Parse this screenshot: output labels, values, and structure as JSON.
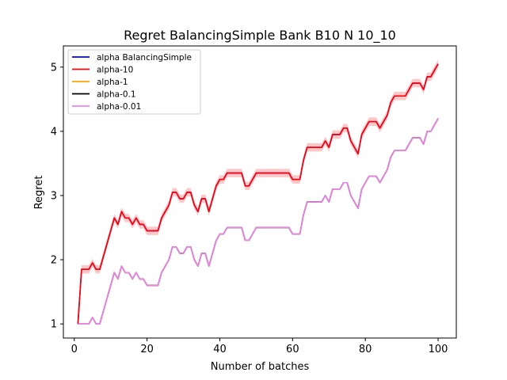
{
  "chart_data": {
    "type": "line",
    "title": "Regret BalancingSimple Bank B10 N 10_10",
    "xlabel": "Number of batches",
    "ylabel": "Regret",
    "xlim": [
      -3,
      105
    ],
    "ylim": [
      0.78,
      5.33
    ],
    "xticks": [
      0,
      20,
      40,
      60,
      80,
      100
    ],
    "yticks": [
      1,
      2,
      3,
      4,
      5
    ],
    "grid": false,
    "legend_position": "top-left",
    "x": [
      1,
      2,
      3,
      4,
      5,
      6,
      7,
      8,
      9,
      10,
      11,
      12,
      13,
      14,
      15,
      16,
      17,
      18,
      19,
      20,
      21,
      22,
      23,
      24,
      25,
      26,
      27,
      28,
      29,
      30,
      31,
      32,
      33,
      34,
      35,
      36,
      37,
      38,
      39,
      40,
      41,
      42,
      43,
      44,
      45,
      46,
      47,
      48,
      49,
      50,
      51,
      52,
      53,
      54,
      55,
      56,
      57,
      58,
      59,
      60,
      61,
      62,
      63,
      64,
      65,
      66,
      67,
      68,
      69,
      70,
      71,
      72,
      73,
      74,
      75,
      76,
      77,
      78,
      79,
      80,
      81,
      82,
      83,
      84,
      85,
      86,
      87,
      88,
      89,
      90,
      91,
      92,
      93,
      94,
      95,
      96,
      97,
      98,
      99,
      100
    ],
    "series": [
      {
        "name": "alpha BalancingSimple",
        "color": "#0000ff",
        "values": [
          1.0,
          1.85,
          1.85,
          1.85,
          1.95,
          1.85,
          1.85,
          2.05,
          2.25,
          2.45,
          2.65,
          2.55,
          2.75,
          2.65,
          2.65,
          2.55,
          2.65,
          2.55,
          2.55,
          2.45,
          2.45,
          2.45,
          2.45,
          2.65,
          2.75,
          2.85,
          3.05,
          3.05,
          2.95,
          2.95,
          3.05,
          3.05,
          2.85,
          2.75,
          2.95,
          2.95,
          2.75,
          2.95,
          3.15,
          3.25,
          3.25,
          3.35,
          3.35,
          3.35,
          3.35,
          3.35,
          3.15,
          3.15,
          3.25,
          3.35,
          3.35,
          3.35,
          3.35,
          3.35,
          3.35,
          3.35,
          3.35,
          3.35,
          3.35,
          3.25,
          3.25,
          3.25,
          3.55,
          3.75,
          3.75,
          3.75,
          3.75,
          3.75,
          3.85,
          3.75,
          3.95,
          3.95,
          3.95,
          4.05,
          4.05,
          3.85,
          3.75,
          3.65,
          3.95,
          4.05,
          4.15,
          4.15,
          4.15,
          4.05,
          4.15,
          4.25,
          4.45,
          4.55,
          4.55,
          4.55,
          4.55,
          4.65,
          4.75,
          4.75,
          4.75,
          4.65,
          4.85,
          4.85,
          4.95,
          5.05
        ],
        "band": false
      },
      {
        "name": "alpha-10",
        "color": "#ff0000",
        "values": [
          1.0,
          1.85,
          1.85,
          1.85,
          1.95,
          1.85,
          1.85,
          2.05,
          2.25,
          2.45,
          2.65,
          2.55,
          2.75,
          2.65,
          2.65,
          2.55,
          2.65,
          2.55,
          2.55,
          2.45,
          2.45,
          2.45,
          2.45,
          2.65,
          2.75,
          2.85,
          3.05,
          3.05,
          2.95,
          2.95,
          3.05,
          3.05,
          2.85,
          2.75,
          2.95,
          2.95,
          2.75,
          2.95,
          3.15,
          3.25,
          3.25,
          3.35,
          3.35,
          3.35,
          3.35,
          3.35,
          3.15,
          3.15,
          3.25,
          3.35,
          3.35,
          3.35,
          3.35,
          3.35,
          3.35,
          3.35,
          3.35,
          3.35,
          3.35,
          3.25,
          3.25,
          3.25,
          3.55,
          3.75,
          3.75,
          3.75,
          3.75,
          3.75,
          3.85,
          3.75,
          3.95,
          3.95,
          3.95,
          4.05,
          4.05,
          3.85,
          3.75,
          3.65,
          3.95,
          4.05,
          4.15,
          4.15,
          4.15,
          4.05,
          4.15,
          4.25,
          4.45,
          4.55,
          4.55,
          4.55,
          4.55,
          4.65,
          4.75,
          4.75,
          4.75,
          4.65,
          4.85,
          4.85,
          4.95,
          5.05
        ],
        "band": true,
        "band_halfwidth": 0.065
      },
      {
        "name": "alpha-1",
        "color": "#ffa500",
        "values": [
          1.0,
          1.0,
          1.0,
          1.0,
          1.1,
          1.0,
          1.0,
          1.2,
          1.4,
          1.6,
          1.8,
          1.7,
          1.9,
          1.8,
          1.8,
          1.7,
          1.8,
          1.7,
          1.7,
          1.6,
          1.6,
          1.6,
          1.6,
          1.8,
          1.9,
          2.0,
          2.2,
          2.2,
          2.1,
          2.1,
          2.2,
          2.2,
          2.0,
          1.9,
          2.1,
          2.1,
          1.9,
          2.1,
          2.3,
          2.4,
          2.4,
          2.5,
          2.5,
          2.5,
          2.5,
          2.5,
          2.3,
          2.3,
          2.4,
          2.5,
          2.5,
          2.5,
          2.5,
          2.5,
          2.5,
          2.5,
          2.5,
          2.5,
          2.5,
          2.4,
          2.4,
          2.4,
          2.7,
          2.9,
          2.9,
          2.9,
          2.9,
          2.9,
          3.0,
          2.9,
          3.1,
          3.1,
          3.1,
          3.2,
          3.2,
          3.0,
          2.9,
          2.8,
          3.1,
          3.2,
          3.3,
          3.3,
          3.3,
          3.2,
          3.3,
          3.4,
          3.6,
          3.7,
          3.7,
          3.7,
          3.7,
          3.8,
          3.9,
          3.9,
          3.9,
          3.8,
          4.0,
          4.0,
          4.1,
          4.2
        ],
        "band": false
      },
      {
        "name": "alpha-0.1",
        "color": "#000000",
        "values": [
          1.0,
          1.0,
          1.0,
          1.0,
          1.1,
          1.0,
          1.0,
          1.2,
          1.4,
          1.6,
          1.8,
          1.7,
          1.9,
          1.8,
          1.8,
          1.7,
          1.8,
          1.7,
          1.7,
          1.6,
          1.6,
          1.6,
          1.6,
          1.8,
          1.9,
          2.0,
          2.2,
          2.2,
          2.1,
          2.1,
          2.2,
          2.2,
          2.0,
          1.9,
          2.1,
          2.1,
          1.9,
          2.1,
          2.3,
          2.4,
          2.4,
          2.5,
          2.5,
          2.5,
          2.5,
          2.5,
          2.3,
          2.3,
          2.4,
          2.5,
          2.5,
          2.5,
          2.5,
          2.5,
          2.5,
          2.5,
          2.5,
          2.5,
          2.5,
          2.4,
          2.4,
          2.4,
          2.7,
          2.9,
          2.9,
          2.9,
          2.9,
          2.9,
          3.0,
          2.9,
          3.1,
          3.1,
          3.1,
          3.2,
          3.2,
          3.0,
          2.9,
          2.8,
          3.1,
          3.2,
          3.3,
          3.3,
          3.3,
          3.2,
          3.3,
          3.4,
          3.6,
          3.7,
          3.7,
          3.7,
          3.7,
          3.8,
          3.9,
          3.9,
          3.9,
          3.8,
          4.0,
          4.0,
          4.1,
          4.2
        ],
        "band": false
      },
      {
        "name": "alpha-0.01",
        "color": "#ee82ee",
        "values": [
          1.0,
          1.0,
          1.0,
          1.0,
          1.1,
          1.0,
          1.0,
          1.2,
          1.4,
          1.6,
          1.8,
          1.7,
          1.9,
          1.8,
          1.8,
          1.7,
          1.8,
          1.7,
          1.7,
          1.6,
          1.6,
          1.6,
          1.6,
          1.8,
          1.9,
          2.0,
          2.2,
          2.2,
          2.1,
          2.1,
          2.2,
          2.2,
          2.0,
          1.9,
          2.1,
          2.1,
          1.9,
          2.1,
          2.3,
          2.4,
          2.4,
          2.5,
          2.5,
          2.5,
          2.5,
          2.5,
          2.3,
          2.3,
          2.4,
          2.5,
          2.5,
          2.5,
          2.5,
          2.5,
          2.5,
          2.5,
          2.5,
          2.5,
          2.5,
          2.4,
          2.4,
          2.4,
          2.7,
          2.9,
          2.9,
          2.9,
          2.9,
          2.9,
          3.0,
          2.9,
          3.1,
          3.1,
          3.1,
          3.2,
          3.2,
          3.0,
          2.9,
          2.8,
          3.1,
          3.2,
          3.3,
          3.3,
          3.3,
          3.2,
          3.3,
          3.4,
          3.6,
          3.7,
          3.7,
          3.7,
          3.7,
          3.8,
          3.9,
          3.9,
          3.9,
          3.8,
          4.0,
          4.0,
          4.1,
          4.2
        ],
        "band": false
      }
    ]
  }
}
